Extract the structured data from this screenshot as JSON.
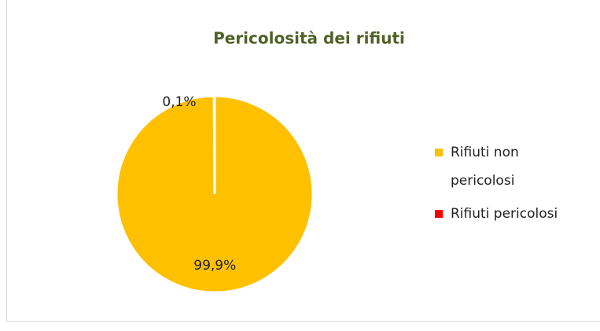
{
  "chart_data": {
    "type": "pie",
    "title": "Pericolosità dei rifiuti",
    "categories": [
      "Rifiuti non pericolosi",
      "Rifiuti pericolosi"
    ],
    "values": [
      99.9,
      0.1
    ],
    "value_labels": [
      "99,9%",
      "0,1%"
    ],
    "colors": [
      "#FFC000",
      "#FF0000"
    ],
    "legend": "right"
  }
}
